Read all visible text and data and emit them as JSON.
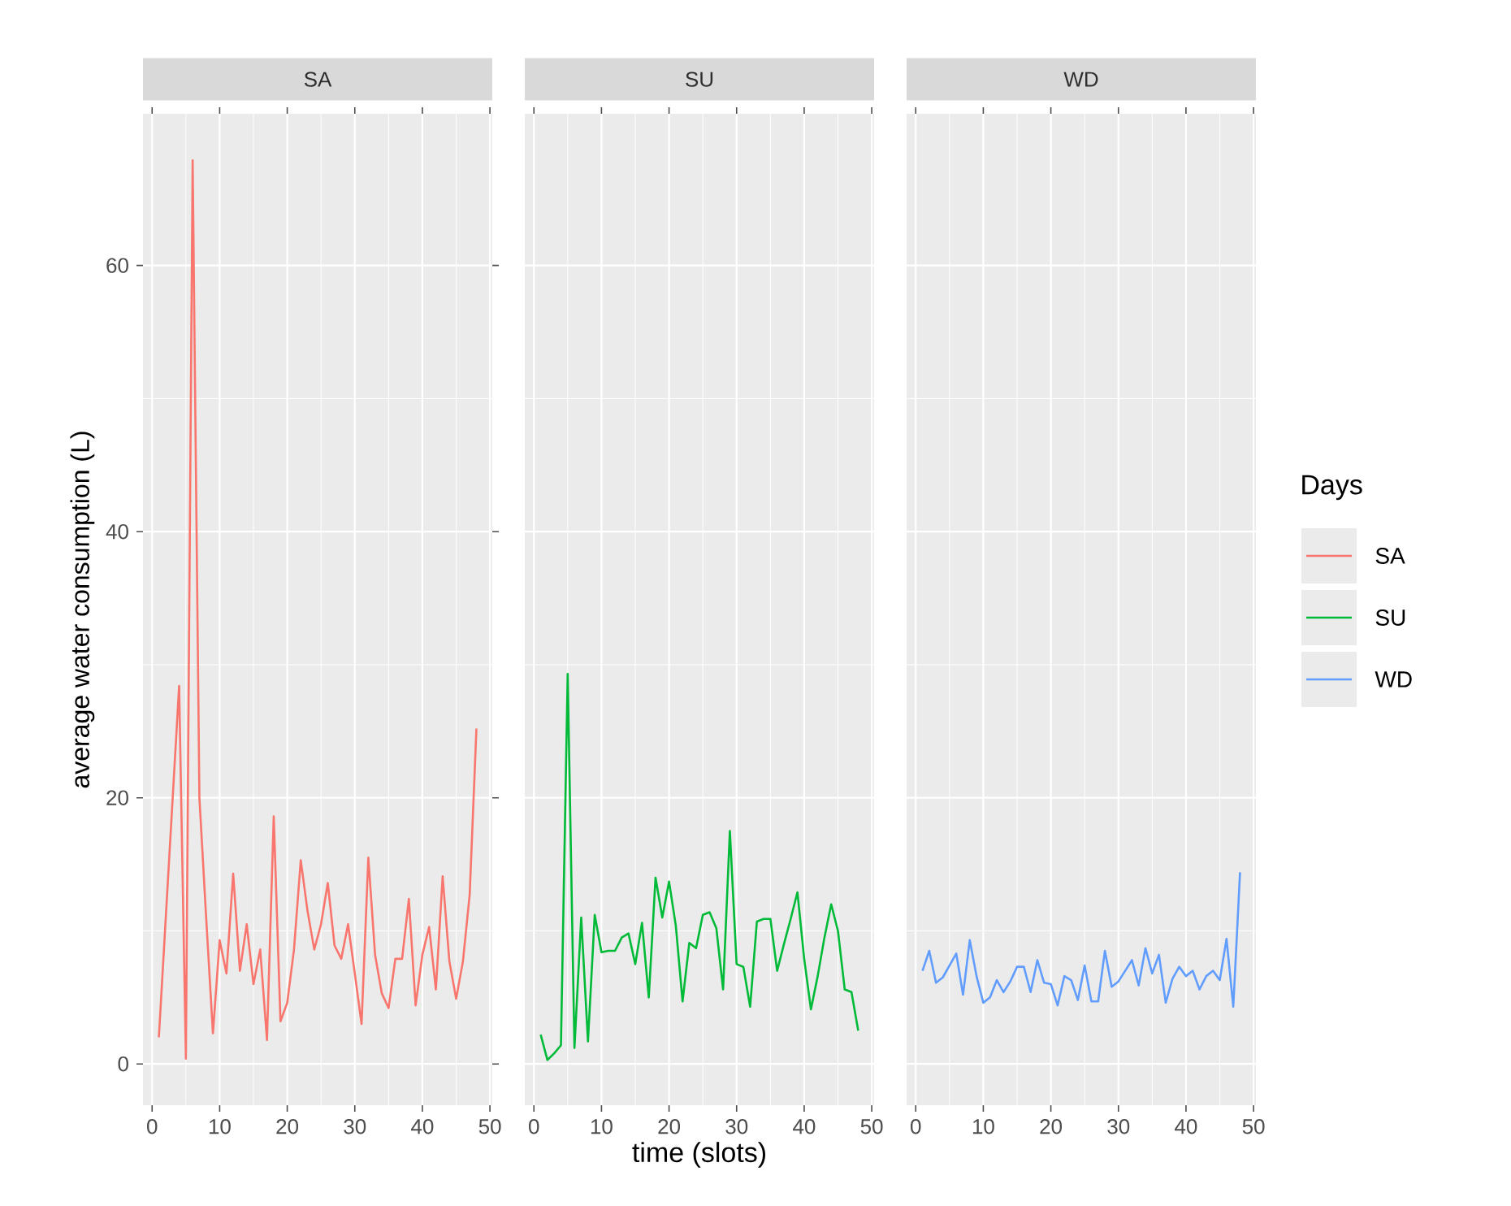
{
  "chart_data": [
    {
      "type": "line",
      "title": "SA",
      "ylabel": "average water consumption (L)",
      "legend": "right",
      "x": [
        1,
        2,
        3,
        4,
        5,
        6,
        7,
        8,
        9,
        10,
        11,
        12,
        13,
        14,
        15,
        16,
        17,
        18,
        19,
        20,
        21,
        22,
        23,
        24,
        25,
        26,
        27,
        28,
        29,
        30,
        31,
        32,
        33,
        34,
        35,
        36,
        37,
        38,
        39,
        40,
        41,
        42,
        43,
        44,
        45,
        46,
        47,
        48
      ],
      "series": [
        {
          "name": "SA",
          "color": "#f8766d",
          "values": [
            2.0,
            10.8,
            19.6,
            28.4,
            0.4,
            67.9,
            20.0,
            11.0,
            2.3,
            9.3,
            6.8,
            14.3,
            7.0,
            10.5,
            6.0,
            8.6,
            1.8,
            18.6,
            3.2,
            4.6,
            8.6,
            15.3,
            11.5,
            8.6,
            10.5,
            13.6,
            8.9,
            7.9,
            10.5,
            6.8,
            3.0,
            15.5,
            8.2,
            5.3,
            4.2,
            7.9,
            7.9,
            12.4,
            4.4,
            8.2,
            10.3,
            5.6,
            14.1,
            7.7,
            4.9,
            7.7,
            12.7,
            25.2
          ]
        }
      ],
      "xlim": [
        -1.35,
        50.35
      ],
      "ylim": [
        -3.1,
        71.4
      ],
      "xticks": [
        0,
        10,
        20,
        30,
        40,
        50
      ],
      "yticks": [
        0,
        20,
        40,
        60
      ],
      "grid": true
    },
    {
      "type": "line",
      "title": "SU",
      "xlabel": "time (slots)",
      "legend": "right",
      "tick_labels": "x",
      "x": [
        1,
        2,
        3,
        4,
        5,
        6,
        7,
        8,
        9,
        10,
        11,
        12,
        13,
        14,
        15,
        16,
        17,
        18,
        19,
        20,
        21,
        22,
        23,
        24,
        25,
        26,
        27,
        28,
        29,
        30,
        31,
        32,
        33,
        34,
        35,
        36,
        37,
        38,
        39,
        40,
        41,
        42,
        43,
        44,
        45,
        46,
        47,
        48
      ],
      "series": [
        {
          "name": "SU",
          "color": "#00ba38",
          "values": [
            2.2,
            0.3,
            0.8,
            1.4,
            29.3,
            1.2,
            11.0,
            1.7,
            11.2,
            8.4,
            8.5,
            8.5,
            9.5,
            9.8,
            7.5,
            10.6,
            5.0,
            14.0,
            11.0,
            13.7,
            10.4,
            4.7,
            9.1,
            8.7,
            11.2,
            11.4,
            10.2,
            5.6,
            17.5,
            7.5,
            7.3,
            4.3,
            10.7,
            10.9,
            10.9,
            7.0,
            9.0,
            10.9,
            12.9,
            7.9,
            4.1,
            6.6,
            9.5,
            12.0,
            10.0,
            5.6,
            5.4,
            2.5
          ]
        }
      ],
      "xlim": [
        -1.35,
        50.35
      ],
      "ylim": [
        -3.1,
        71.4
      ],
      "xticks": [
        0,
        10,
        20,
        30,
        40,
        50
      ],
      "yticks": [
        0,
        20,
        40,
        60
      ],
      "grid": true
    },
    {
      "type": "line",
      "title": "WD",
      "legend": "right",
      "legend_title": "Days",
      "tick_labels": "x",
      "x": [
        1,
        2,
        3,
        4,
        5,
        6,
        7,
        8,
        9,
        10,
        11,
        12,
        13,
        14,
        15,
        16,
        17,
        18,
        19,
        20,
        21,
        22,
        23,
        24,
        25,
        26,
        27,
        28,
        29,
        30,
        31,
        32,
        33,
        34,
        35,
        36,
        37,
        38,
        39,
        40,
        41,
        42,
        43,
        44,
        45,
        46,
        47,
        48
      ],
      "series": [
        {
          "name": "WD",
          "color": "#619cff",
          "values": [
            7.0,
            8.5,
            6.1,
            6.5,
            7.4,
            8.3,
            5.2,
            9.3,
            6.6,
            4.6,
            5.0,
            6.3,
            5.4,
            6.2,
            7.3,
            7.3,
            5.4,
            7.8,
            6.1,
            6.0,
            4.4,
            6.6,
            6.3,
            4.8,
            7.4,
            4.7,
            4.7,
            8.5,
            5.8,
            6.2,
            7.0,
            7.8,
            5.9,
            8.7,
            6.8,
            8.2,
            4.6,
            6.4,
            7.3,
            6.6,
            7.0,
            5.6,
            6.6,
            7.0,
            6.3,
            9.4,
            4.3,
            14.4
          ]
        }
      ],
      "xlim": [
        -1.35,
        50.35
      ],
      "ylim": [
        -3.1,
        71.4
      ],
      "xticks": [
        0,
        10,
        20,
        30,
        40,
        50
      ],
      "yticks": [
        0,
        20,
        40,
        60
      ],
      "grid": true
    }
  ]
}
